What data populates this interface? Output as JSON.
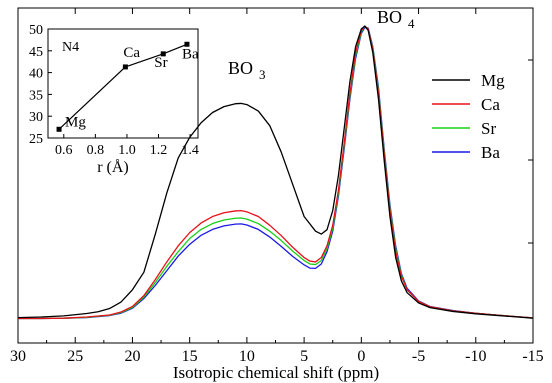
{
  "chart_data": [
    {
      "type": "line",
      "title": "",
      "xlabel": "Isotropic chemical shift (ppm)",
      "ylabel": "",
      "xlim": [
        30,
        -15
      ],
      "x_reversed": true,
      "x_ticks": [
        30,
        25,
        20,
        15,
        10,
        5,
        0,
        -5,
        -10,
        -15
      ],
      "x_tick_labels": [
        "30",
        "25",
        "20",
        "15",
        "10",
        "5",
        "0",
        "-5",
        "-10",
        "-15"
      ],
      "y_tick_labels_shown": false,
      "grid": false,
      "legend_position": "right",
      "annotations": [
        {
          "text": "BO",
          "sub": "3",
          "x": 10.5
        },
        {
          "text": "BO",
          "sub": "4",
          "x": -0.5
        }
      ],
      "series": [
        {
          "name": "Mg",
          "color": "#000000",
          "points": [
            [
              30,
              1.5
            ],
            [
              28,
              1.7
            ],
            [
              26,
              2.1
            ],
            [
              24,
              2.9
            ],
            [
              23,
              3.5
            ],
            [
              22,
              4.6
            ],
            [
              21,
              6.8
            ],
            [
              20,
              11
            ],
            [
              19,
              17
            ],
            [
              18,
              30
            ],
            [
              17,
              44
            ],
            [
              16,
              56
            ],
            [
              15,
              63
            ],
            [
              14,
              68
            ],
            [
              13,
              71.5
            ],
            [
              12,
              73.5
            ],
            [
              11,
              74.5
            ],
            [
              10.5,
              74.6
            ],
            [
              10,
              74.2
            ],
            [
              9,
              72
            ],
            [
              8,
              67
            ],
            [
              7,
              58
            ],
            [
              6,
              47
            ],
            [
              5,
              36
            ],
            [
              4,
              31
            ],
            [
              3.5,
              30
            ],
            [
              3,
              31.5
            ],
            [
              2.5,
              38
            ],
            [
              2,
              50
            ],
            [
              1.5,
              66
            ],
            [
              1,
              82
            ],
            [
              0.5,
              94
            ],
            [
              0,
              100
            ],
            [
              -0.3,
              101
            ],
            [
              -0.6,
              99.5
            ],
            [
              -1,
              92
            ],
            [
              -1.5,
              76
            ],
            [
              -2,
              55
            ],
            [
              -2.5,
              36
            ],
            [
              -3,
              22
            ],
            [
              -3.5,
              14
            ],
            [
              -4,
              10
            ],
            [
              -5,
              6.5
            ],
            [
              -6,
              4.9
            ],
            [
              -8,
              3.6
            ],
            [
              -10,
              2.8
            ],
            [
              -12,
              2.2
            ],
            [
              -15,
              1.3
            ]
          ]
        },
        {
          "name": "Ca",
          "color": "#e8101a",
          "points": [
            [
              30,
              1.2
            ],
            [
              28,
              1.2
            ],
            [
              26,
              1.3
            ],
            [
              24,
              1.7
            ],
            [
              22,
              2.4
            ],
            [
              21,
              3.4
            ],
            [
              20,
              5.3
            ],
            [
              19,
              9
            ],
            [
              18,
              14.5
            ],
            [
              17,
              20.5
            ],
            [
              16,
              26
            ],
            [
              15,
              30.5
            ],
            [
              14,
              33.8
            ],
            [
              13,
              36
            ],
            [
              12,
              37.3
            ],
            [
              11,
              37.9
            ],
            [
              10.5,
              38
            ],
            [
              10,
              37.6
            ],
            [
              9,
              36
            ],
            [
              8,
              33
            ],
            [
              7,
              29.5
            ],
            [
              6,
              25.5
            ],
            [
              5,
              22
            ],
            [
              4.5,
              20.8
            ],
            [
              4,
              20.5
            ],
            [
              3.5,
              22
            ],
            [
              3,
              26
            ],
            [
              2.5,
              33
            ],
            [
              2,
              45
            ],
            [
              1.5,
              61
            ],
            [
              1,
              78
            ],
            [
              0.5,
              92
            ],
            [
              0,
              99.5
            ],
            [
              -0.3,
              101
            ],
            [
              -0.6,
              100
            ],
            [
              -1,
              93
            ],
            [
              -1.5,
              78
            ],
            [
              -2,
              57
            ],
            [
              -2.5,
              38
            ],
            [
              -3,
              24
            ],
            [
              -3.5,
              15.5
            ],
            [
              -4,
              11
            ],
            [
              -5,
              7
            ],
            [
              -6,
              5.2
            ],
            [
              -8,
              3.8
            ],
            [
              -10,
              3
            ],
            [
              -12,
              2.3
            ],
            [
              -15,
              1.4
            ]
          ]
        },
        {
          "name": "Sr",
          "color": "#18d018",
          "points": [
            [
              30,
              1.2
            ],
            [
              28,
              1.2
            ],
            [
              26,
              1.3
            ],
            [
              24,
              1.6
            ],
            [
              22,
              2.3
            ],
            [
              21,
              3.2
            ],
            [
              20,
              5
            ],
            [
              19,
              8.5
            ],
            [
              18,
              13.5
            ],
            [
              17,
              19
            ],
            [
              16,
              24
            ],
            [
              15,
              28.5
            ],
            [
              14,
              31.6
            ],
            [
              13,
              33.6
            ],
            [
              12,
              34.8
            ],
            [
              11,
              35.4
            ],
            [
              10.5,
              35.5
            ],
            [
              10,
              35.1
            ],
            [
              9,
              33.6
            ],
            [
              8,
              31
            ],
            [
              7,
              27.8
            ],
            [
              6,
              24.2
            ],
            [
              5,
              21
            ],
            [
              4.5,
              19.8
            ],
            [
              4,
              19.6
            ],
            [
              3.5,
              21
            ],
            [
              3,
              25
            ],
            [
              2.5,
              32
            ],
            [
              2,
              44
            ],
            [
              1.5,
              60
            ],
            [
              1,
              77
            ],
            [
              0.5,
              91
            ],
            [
              0,
              99
            ],
            [
              -0.3,
              101
            ],
            [
              -0.6,
              100
            ],
            [
              -1,
              93.5
            ],
            [
              -1.5,
              79
            ],
            [
              -2,
              58
            ],
            [
              -2.5,
              39
            ],
            [
              -3,
              25
            ],
            [
              -3.5,
              16
            ],
            [
              -4,
              11
            ],
            [
              -5,
              7
            ],
            [
              -6,
              5.2
            ],
            [
              -8,
              3.8
            ],
            [
              -10,
              3
            ],
            [
              -12,
              2.3
            ],
            [
              -15,
              1.4
            ]
          ]
        },
        {
          "name": "Ba",
          "color": "#1a1ae6",
          "points": [
            [
              30,
              1.2
            ],
            [
              28,
              1.2
            ],
            [
              26,
              1.3
            ],
            [
              24,
              1.5
            ],
            [
              22,
              2.2
            ],
            [
              21,
              3
            ],
            [
              20,
              4.7
            ],
            [
              19,
              8
            ],
            [
              18,
              12.5
            ],
            [
              17,
              17.5
            ],
            [
              16,
              22.5
            ],
            [
              15,
              26.5
            ],
            [
              14,
              29.6
            ],
            [
              13,
              31.6
            ],
            [
              12,
              32.8
            ],
            [
              11,
              33.4
            ],
            [
              10.5,
              33.5
            ],
            [
              10,
              33.1
            ],
            [
              9,
              31.6
            ],
            [
              8,
              29
            ],
            [
              7,
              25.8
            ],
            [
              6,
              22.4
            ],
            [
              5,
              19.5
            ],
            [
              4.5,
              18.4
            ],
            [
              4,
              18.3
            ],
            [
              3.5,
              19.8
            ],
            [
              3,
              24
            ],
            [
              2.5,
              31
            ],
            [
              2,
              43
            ],
            [
              1.5,
              59
            ],
            [
              1,
              76
            ],
            [
              0.5,
              90
            ],
            [
              0,
              98.5
            ],
            [
              -0.3,
              100.5
            ],
            [
              -0.6,
              100.3
            ],
            [
              -1,
              94
            ],
            [
              -1.5,
              80
            ],
            [
              -2,
              59
            ],
            [
              -2.5,
              40
            ],
            [
              -3,
              26
            ],
            [
              -3.5,
              16.5
            ],
            [
              -4,
              11.5
            ],
            [
              -5,
              7.2
            ],
            [
              -6,
              5.3
            ],
            [
              -8,
              3.9
            ],
            [
              -10,
              3
            ],
            [
              -12,
              2.3
            ],
            [
              -15,
              1.4
            ]
          ]
        }
      ]
    },
    {
      "type": "line",
      "title": "N4",
      "xlabel": "r (Å)",
      "ylabel": "",
      "xlim": [
        0.5,
        1.45
      ],
      "ylim": [
        25,
        50
      ],
      "x_ticks": [
        0.6,
        0.8,
        1.0,
        1.2,
        1.4
      ],
      "x_tick_labels": [
        "0.6",
        "0.8",
        "1.0",
        "1.2",
        "1.4"
      ],
      "y_ticks": [
        25,
        30,
        35,
        40,
        45,
        50
      ],
      "y_tick_labels": [
        "25",
        "30",
        "35",
        "40",
        "45",
        "50"
      ],
      "grid": false,
      "markers": "square",
      "series": [
        {
          "name": "N4",
          "color": "#000000",
          "x": [
            0.57,
            0.99,
            1.23,
            1.38
          ],
          "y": [
            27,
            41.3,
            44.3,
            46.5
          ],
          "point_labels": [
            "Mg",
            "Ca",
            "Sr",
            "Ba"
          ]
        }
      ]
    }
  ]
}
